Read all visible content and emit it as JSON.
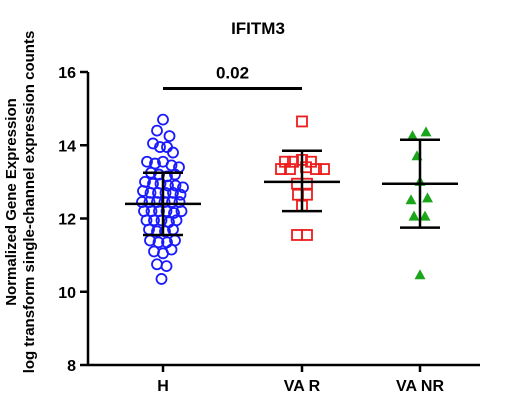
{
  "chart_data": {
    "type": "scatter",
    "title": "IFITM3",
    "ylabel_line1": "Normalized Gene Expression",
    "ylabel_line2": "log transform single-channel expression counts",
    "ylim": [
      8,
      16
    ],
    "yticks": [
      "8",
      "10",
      "12",
      "14",
      "16"
    ],
    "ytick_values": [
      8,
      10,
      12,
      14,
      16
    ],
    "categories": [
      "H",
      "VA R",
      "VA NR"
    ],
    "annotation": {
      "text": "0.02",
      "from": "H",
      "to": "VA R",
      "y": 15.55
    },
    "colors": {
      "H": "#1a1aff",
      "VA R": "#ee1c1c",
      "VA NR": "#1aa51a"
    },
    "markers": {
      "H": "circle",
      "VA R": "square",
      "VA NR": "triangle"
    },
    "series": [
      {
        "category": "H",
        "mean": 12.4,
        "sd_low": 11.55,
        "sd_high": 13.25,
        "points": [
          [
            0.0,
            14.7
          ],
          [
            -0.12,
            14.4
          ],
          [
            0.13,
            14.25
          ],
          [
            -0.2,
            14.05
          ],
          [
            -0.06,
            13.95
          ],
          [
            0.08,
            13.95
          ],
          [
            0.2,
            13.8
          ],
          [
            -0.32,
            13.55
          ],
          [
            -0.16,
            13.5
          ],
          [
            0.0,
            13.55
          ],
          [
            0.17,
            13.45
          ],
          [
            0.32,
            13.4
          ],
          [
            -0.24,
            13.25
          ],
          [
            -0.08,
            13.2
          ],
          [
            0.08,
            13.15
          ],
          [
            0.24,
            13.2
          ],
          [
            -0.36,
            13.0
          ],
          [
            -0.2,
            12.95
          ],
          [
            -0.05,
            12.95
          ],
          [
            0.1,
            12.9
          ],
          [
            0.25,
            12.9
          ],
          [
            0.4,
            12.85
          ],
          [
            -0.4,
            12.75
          ],
          [
            -0.25,
            12.7
          ],
          [
            -0.1,
            12.7
          ],
          [
            0.05,
            12.7
          ],
          [
            0.2,
            12.7
          ],
          [
            0.35,
            12.65
          ],
          [
            -0.42,
            12.45
          ],
          [
            -0.27,
            12.45
          ],
          [
            -0.12,
            12.45
          ],
          [
            0.03,
            12.45
          ],
          [
            0.18,
            12.45
          ],
          [
            0.33,
            12.45
          ],
          [
            -0.38,
            12.2
          ],
          [
            -0.23,
            12.2
          ],
          [
            -0.08,
            12.2
          ],
          [
            0.07,
            12.2
          ],
          [
            0.22,
            12.15
          ],
          [
            0.37,
            12.2
          ],
          [
            -0.33,
            11.95
          ],
          [
            -0.18,
            11.95
          ],
          [
            -0.03,
            11.95
          ],
          [
            0.12,
            11.9
          ],
          [
            0.27,
            11.95
          ],
          [
            -0.28,
            11.7
          ],
          [
            -0.12,
            11.65
          ],
          [
            0.04,
            11.65
          ],
          [
            0.2,
            11.7
          ],
          [
            -0.26,
            11.4
          ],
          [
            -0.09,
            11.35
          ],
          [
            0.08,
            11.35
          ],
          [
            0.24,
            11.4
          ],
          [
            -0.18,
            11.1
          ],
          [
            0.0,
            11.05
          ],
          [
            0.17,
            11.15
          ],
          [
            -0.12,
            10.75
          ],
          [
            0.07,
            10.7
          ],
          [
            -0.03,
            10.35
          ]
        ]
      },
      {
        "category": "VA R",
        "mean": 13.0,
        "sd_low": 12.2,
        "sd_high": 13.85,
        "points": [
          [
            0.0,
            14.65
          ],
          [
            -0.34,
            13.55
          ],
          [
            -0.18,
            13.55
          ],
          [
            0.0,
            13.6
          ],
          [
            0.18,
            13.55
          ],
          [
            -0.42,
            13.35
          ],
          [
            -0.24,
            13.35
          ],
          [
            0.08,
            13.4
          ],
          [
            0.28,
            13.35
          ],
          [
            0.44,
            13.35
          ],
          [
            -0.1,
            12.95
          ],
          [
            0.1,
            12.95
          ],
          [
            -0.08,
            12.65
          ],
          [
            0.1,
            12.65
          ],
          [
            0.0,
            12.35
          ],
          [
            -0.1,
            11.55
          ],
          [
            0.1,
            11.55
          ]
        ]
      },
      {
        "category": "VA NR",
        "mean": 12.95,
        "sd_low": 11.75,
        "sd_high": 14.15,
        "points": [
          [
            -0.15,
            14.25
          ],
          [
            0.12,
            14.35
          ],
          [
            -0.06,
            13.7
          ],
          [
            0.0,
            13.0
          ],
          [
            -0.18,
            12.5
          ],
          [
            0.15,
            12.55
          ],
          [
            -0.12,
            12.05
          ],
          [
            0.1,
            12.05
          ],
          [
            0.0,
            10.45
          ]
        ]
      }
    ]
  }
}
